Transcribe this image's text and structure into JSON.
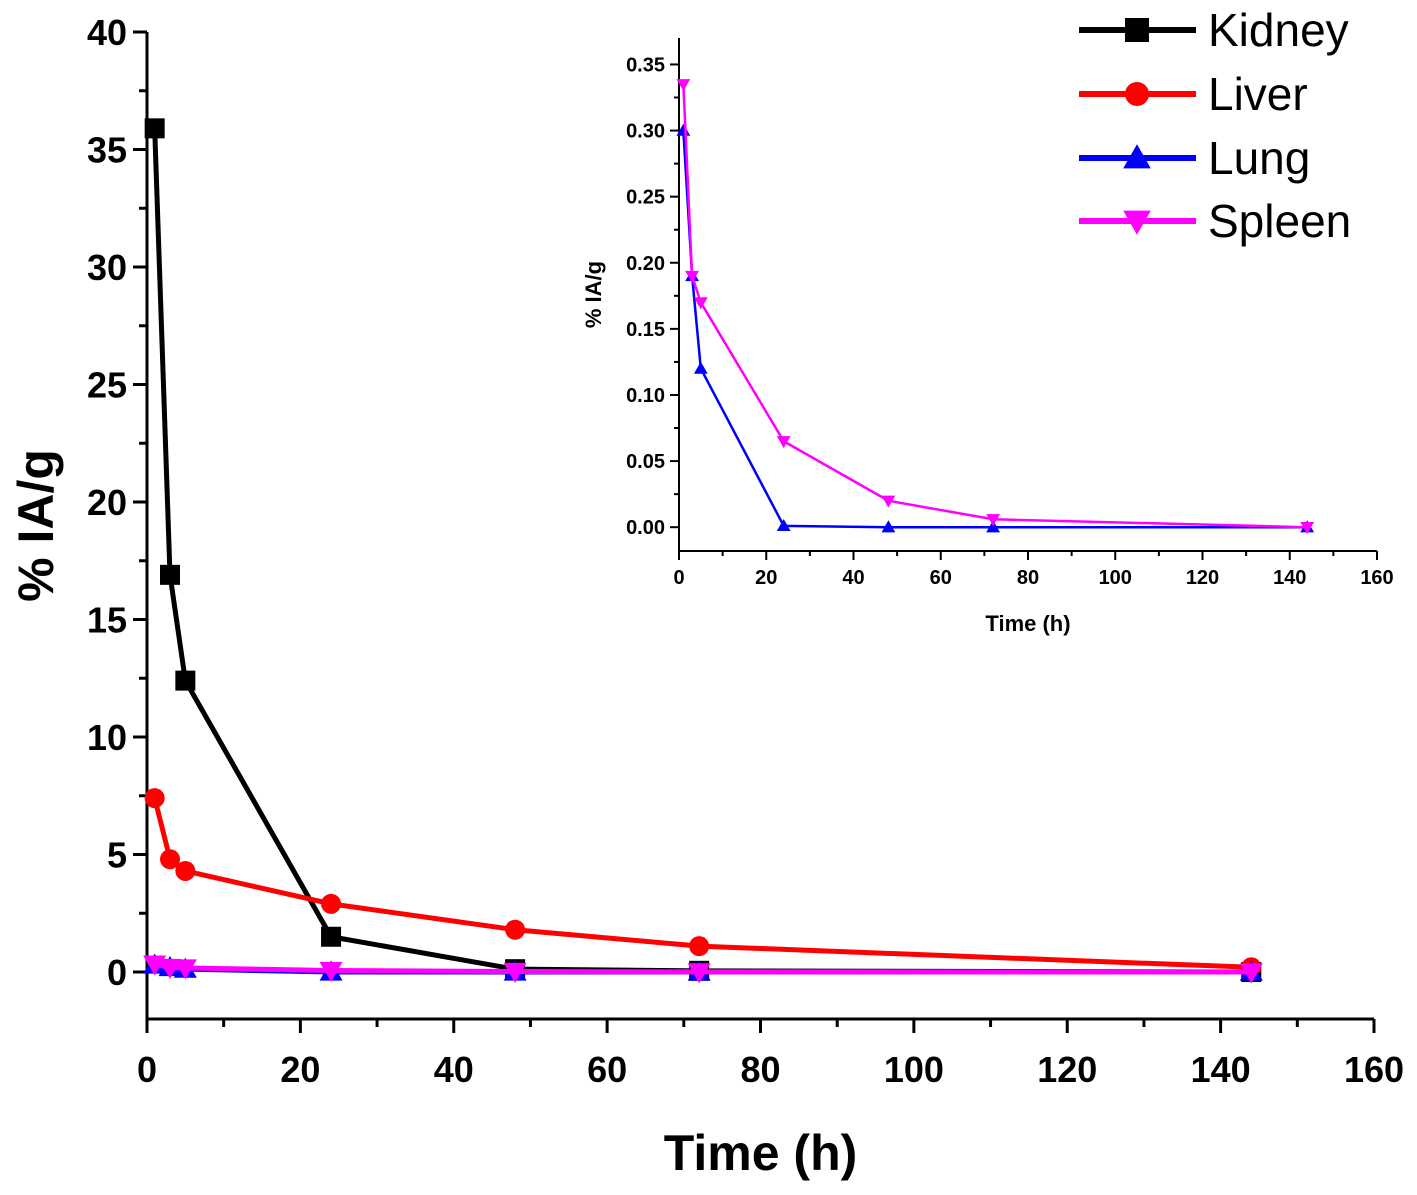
{
  "chart_data": [
    {
      "type": "line",
      "panel": "main",
      "title": "",
      "xlabel": "Time (h)",
      "ylabel": "% IA/g",
      "xlim": [
        0,
        160
      ],
      "ylim": [
        -2,
        40
      ],
      "xticks": [
        0,
        20,
        40,
        60,
        80,
        100,
        120,
        140,
        160
      ],
      "yticks": [
        0,
        5,
        10,
        15,
        20,
        25,
        30,
        35,
        40
      ],
      "legend_position": "top-right",
      "series": [
        {
          "name": "Kidney",
          "color": "#000000",
          "marker": "square",
          "x": [
            1,
            3,
            5,
            24,
            48,
            72,
            144
          ],
          "values": [
            35.9,
            16.9,
            12.4,
            1.5,
            0.12,
            0.05,
            0.0
          ]
        },
        {
          "name": "Liver",
          "color": "#ff0000",
          "marker": "circle",
          "x": [
            1,
            3,
            5,
            24,
            48,
            72,
            144
          ],
          "values": [
            7.4,
            4.8,
            4.3,
            2.9,
            1.8,
            1.1,
            0.2
          ]
        },
        {
          "name": "Lung",
          "color": "#0000ff",
          "marker": "triangle-up",
          "x": [
            1,
            3,
            5,
            24,
            48,
            72,
            144
          ],
          "values": [
            0.3,
            0.19,
            0.12,
            0.0,
            0.0,
            0.0,
            0.0
          ]
        },
        {
          "name": "Spleen",
          "color": "#ff00ff",
          "marker": "triangle-down",
          "x": [
            1,
            3,
            5,
            24,
            48,
            72,
            144
          ],
          "values": [
            0.335,
            0.19,
            0.17,
            0.065,
            0.02,
            0.006,
            0.0
          ]
        }
      ]
    },
    {
      "type": "line",
      "panel": "inset",
      "title": "",
      "xlabel": "Time (h)",
      "ylabel": "% IA/g",
      "xlim": [
        0,
        160
      ],
      "ylim": [
        -0.018,
        0.37
      ],
      "xticks": [
        0,
        20,
        40,
        60,
        80,
        100,
        120,
        140,
        160
      ],
      "yticks": [
        0.0,
        0.05,
        0.1,
        0.15,
        0.2,
        0.25,
        0.3,
        0.35
      ],
      "ytick_labels": [
        "0.00",
        "0.05",
        "0.10",
        "0.15",
        "0.20",
        "0.25",
        "0.30",
        "0.35"
      ],
      "series": [
        {
          "name": "Lung",
          "color": "#0000ff",
          "marker": "triangle-up",
          "x": [
            1,
            3,
            5,
            24,
            48,
            72,
            144
          ],
          "values": [
            0.3,
            0.19,
            0.12,
            0.001,
            0.0,
            0.0,
            0.0
          ]
        },
        {
          "name": "Spleen",
          "color": "#ff00ff",
          "marker": "triangle-down",
          "x": [
            1,
            3,
            5,
            24,
            48,
            72,
            144
          ],
          "values": [
            0.335,
            0.19,
            0.17,
            0.065,
            0.02,
            0.006,
            0.0
          ]
        }
      ]
    }
  ]
}
